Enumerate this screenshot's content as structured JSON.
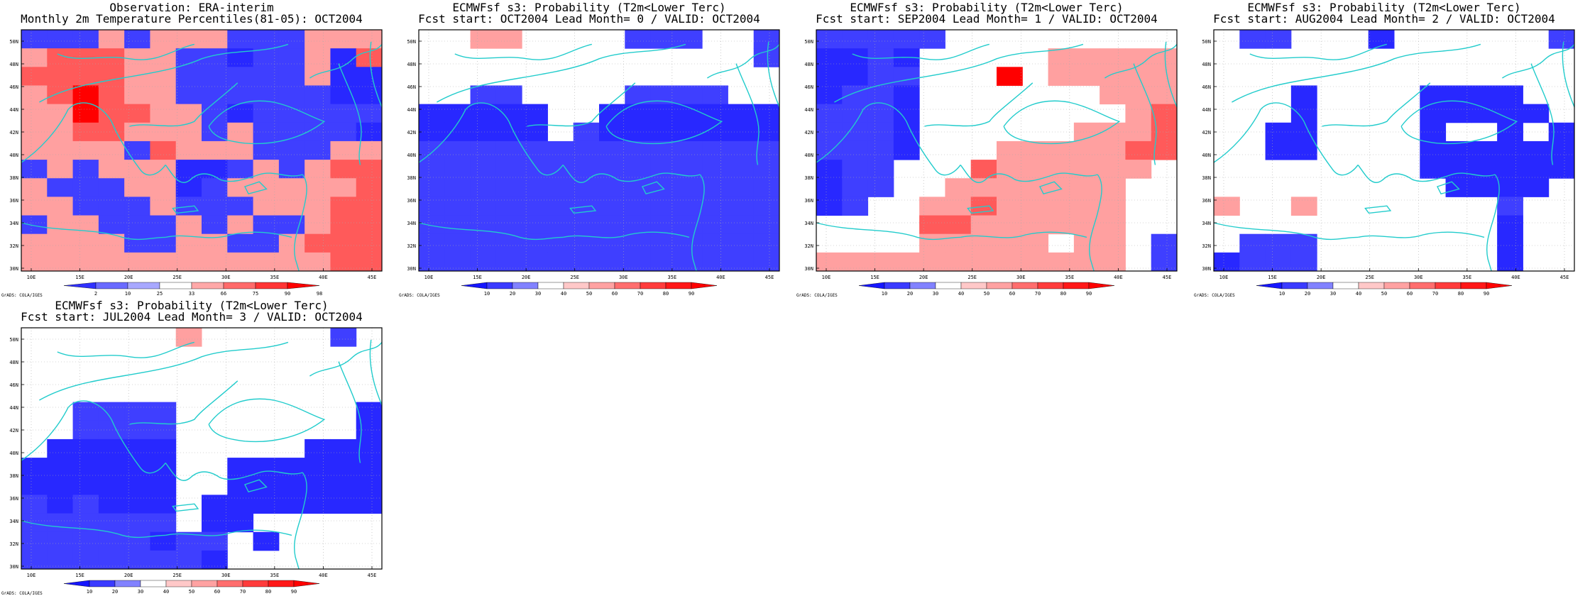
{
  "panels": [
    {
      "title_line1": "Observation: ERA-interim",
      "title_line2": "Monthly 2m Temperature Percentiles(81-05): OCT2004",
      "colorbar": "obs",
      "grid": [
        "22232333222333",
        "34443322122314",
        "44443322222311",
        "34543322222211",
        "33544332122222",
        "33443332322221",
        "33332433322233",
        "23233311232344",
        "32223312333334",
        "33222322233344",
        "23322232322344",
        "33332233223444",
        "33333333333344"
      ]
    },
    {
      "title_line1": "ECMWFsf s3: Probability (T2m<Lower Terc)",
      "title_line2": "Fcst start: OCT2004  Lead Month= 0 / VALID: OCT2004",
      "colorbar": "prob",
      "grid": [
        "00330000222002",
        "00000000000002",
        "00000000000000",
        "00220000222200",
        "11111001111111",
        "11111021111111",
        "22222222222222",
        "22222222222222",
        "22222222222222",
        "22222222222222",
        "22222222222222",
        "22222222222222",
        "22222222222222"
      ]
    },
    {
      "title_line1": "ECMWFsf s3: Probability (T2m<Lower Terc)",
      "title_line2": "Fcst start: SEP2004  Lead Month= 1 / VALID: OCT2004",
      "colorbar": "prob",
      "grid": [
        "22222000000000",
        "11210000033333",
        "11220005033333",
        "12210000000333",
        "22210000000034",
        "22210000003334",
        "22210003333344",
        "12200043333330",
        "12200333333300",
        "12003343333300",
        "00004433333300",
        "00003333303302",
        "33333333333302"
      ]
    },
    {
      "title_line1": "ECMWFsf s3: Probability (T2m<Lower Terc)",
      "title_line2": "Fcst start: AUG2004  Lead Month= 2 / VALID: OCT2004",
      "colorbar": "prob",
      "grid": [
        "02200010000002",
        "00000000000000",
        "00000000000000",
        "00010000111100",
        "00010000111110",
        "00110000100101",
        "00110000111111",
        "00000000111111",
        "00000000011110",
        "30030000000200",
        "00000000000100",
        "02220000000100",
        "12220000000100"
      ]
    },
    {
      "title_line1": "ECMWFsf s3: Probability (T2m<Lower Terc)",
      "title_line2": "Fcst start: JUL2004  Lead Month= 3 / VALID: OCT2004",
      "colorbar": "prob",
      "grid": [
        "00000030000020",
        "00000000000000",
        "00000000000000",
        "00000000000000",
        "00222200000001",
        "00222200000001",
        "01111100000111",
        "11111100111111",
        "11111100111111",
        "21211101111111",
        "22222201100000",
        "22222122010000",
        "22222221000000"
      ]
    }
  ],
  "axes": {
    "lat_labels": [
      "30N",
      "32N",
      "34N",
      "36N",
      "38N",
      "40N",
      "42N",
      "44N",
      "46N",
      "48N",
      "50N"
    ],
    "lon_labels": [
      "10E",
      "15E",
      "20E",
      "25E",
      "30E",
      "35E",
      "40E",
      "45E"
    ]
  },
  "colorbars": {
    "obs": {
      "labels": [
        "2",
        "10",
        "25",
        "33",
        "66",
        "75",
        "90",
        "98"
      ],
      "colors": [
        "#3030ff",
        "#6a6aff",
        "#a8a8ff",
        "#ffffff",
        "#ffa8a8",
        "#ff6a6a",
        "#ff3434",
        "#ff0000"
      ]
    },
    "prob": {
      "labels": [
        "10",
        "20",
        "30",
        "40",
        "50",
        "60",
        "70",
        "80",
        "90"
      ],
      "colors": [
        "#1616ff",
        "#3b3bff",
        "#8282ff",
        "#ffffff",
        "#ffc8c8",
        "#ffa2a2",
        "#ff6e6e",
        "#ff3c3c",
        "#ff1818",
        "#ff0000"
      ]
    }
  },
  "cell_colors": [
    "#ffffff",
    "#2828ff",
    "#3f3fff",
    "#ffa0a0",
    "#ff5a5a",
    "#ff0000"
  ],
  "coast_color": "#22cccc",
  "credit": "GrADS: COLA/IGES"
}
